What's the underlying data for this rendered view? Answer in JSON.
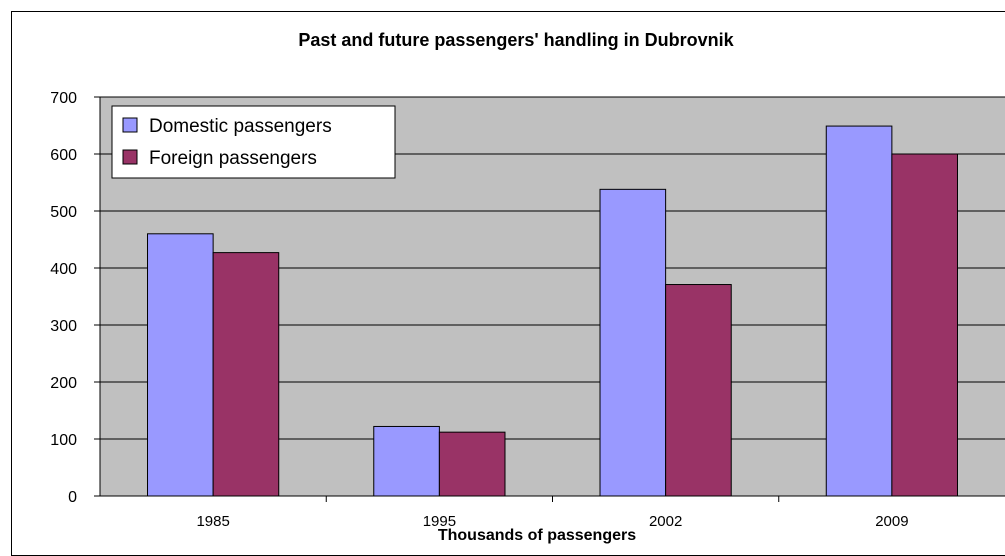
{
  "chart_data": {
    "type": "bar",
    "title": "Past and future passengers' handling in Dubrovnik",
    "xlabel": "Thousands of passengers",
    "ylabel": "",
    "categories": [
      "1985",
      "1995",
      "2002",
      "2009"
    ],
    "series": [
      {
        "name": "Domestic passengers",
        "values": [
          460,
          122,
          538,
          649
        ],
        "color": "#9999ff"
      },
      {
        "name": "Foreign passengers",
        "values": [
          427,
          112,
          371,
          600
        ],
        "color": "#993366"
      }
    ],
    "ylim": [
      0,
      700
    ],
    "yticks": [
      0,
      100,
      200,
      300,
      400,
      500,
      600,
      700
    ],
    "grid": true,
    "legend_position": "top-left",
    "plot_background": "#c0c0c0"
  }
}
